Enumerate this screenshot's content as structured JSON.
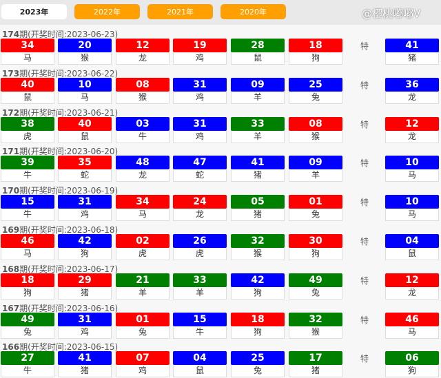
{
  "tabs": [
    "2023年",
    "2022年",
    "2021年",
    "2020年"
  ],
  "active_tab": 0,
  "colors": {
    "red": "#ff0000",
    "blue": "#0000ff",
    "green": "#008000",
    "tab": "#ff9f00"
  },
  "special_label": "特",
  "draws": [
    {
      "period": "174",
      "label": "期(开奖时间:2023-06-23)",
      "balls": [
        [
          "34",
          "马",
          "red"
        ],
        [
          "20",
          "猴",
          "blue"
        ],
        [
          "12",
          "龙",
          "red"
        ],
        [
          "19",
          "鸡",
          "red"
        ],
        [
          "28",
          "鼠",
          "green"
        ],
        [
          "18",
          "狗",
          "red"
        ]
      ],
      "special": [
        "41",
        "猪",
        "blue"
      ]
    },
    {
      "period": "173",
      "label": "期(开奖时间:2023-06-22)",
      "balls": [
        [
          "40",
          "鼠",
          "red"
        ],
        [
          "10",
          "马",
          "blue"
        ],
        [
          "08",
          "猴",
          "red"
        ],
        [
          "31",
          "鸡",
          "blue"
        ],
        [
          "09",
          "羊",
          "blue"
        ],
        [
          "25",
          "兔",
          "blue"
        ]
      ],
      "special": [
        "36",
        "龙",
        "blue"
      ]
    },
    {
      "period": "172",
      "label": "期(开奖时间:2023-06-21)",
      "balls": [
        [
          "38",
          "虎",
          "green"
        ],
        [
          "40",
          "鼠",
          "red"
        ],
        [
          "03",
          "牛",
          "blue"
        ],
        [
          "31",
          "鸡",
          "blue"
        ],
        [
          "33",
          "羊",
          "green"
        ],
        [
          "08",
          "猴",
          "red"
        ]
      ],
      "special": [
        "12",
        "龙",
        "red"
      ]
    },
    {
      "period": "171",
      "label": "期(开奖时间:2023-06-20)",
      "balls": [
        [
          "39",
          "牛",
          "green"
        ],
        [
          "35",
          "蛇",
          "red"
        ],
        [
          "48",
          "龙",
          "blue"
        ],
        [
          "47",
          "蛇",
          "blue"
        ],
        [
          "41",
          "猪",
          "blue"
        ],
        [
          "09",
          "羊",
          "blue"
        ]
      ],
      "special": [
        "10",
        "马",
        "blue"
      ]
    },
    {
      "period": "170",
      "label": "期(开奖时间:2023-06-19)",
      "balls": [
        [
          "15",
          "牛",
          "blue"
        ],
        [
          "31",
          "鸡",
          "blue"
        ],
        [
          "34",
          "马",
          "red"
        ],
        [
          "24",
          "龙",
          "red"
        ],
        [
          "05",
          "猪",
          "green"
        ],
        [
          "01",
          "兔",
          "red"
        ]
      ],
      "special": [
        "10",
        "马",
        "blue"
      ]
    },
    {
      "period": "169",
      "label": "期(开奖时间:2023-06-18)",
      "balls": [
        [
          "46",
          "马",
          "red"
        ],
        [
          "42",
          "狗",
          "blue"
        ],
        [
          "02",
          "虎",
          "red"
        ],
        [
          "26",
          "虎",
          "blue"
        ],
        [
          "32",
          "猴",
          "green"
        ],
        [
          "30",
          "狗",
          "red"
        ]
      ],
      "special": [
        "04",
        "鼠",
        "blue"
      ]
    },
    {
      "period": "168",
      "label": "期(开奖时间:2023-06-17)",
      "balls": [
        [
          "18",
          "狗",
          "red"
        ],
        [
          "29",
          "猪",
          "red"
        ],
        [
          "21",
          "羊",
          "green"
        ],
        [
          "33",
          "羊",
          "green"
        ],
        [
          "42",
          "狗",
          "blue"
        ],
        [
          "49",
          "兔",
          "green"
        ]
      ],
      "special": [
        "12",
        "龙",
        "red"
      ]
    },
    {
      "period": "167",
      "label": "期(开奖时间:2023-06-16)",
      "balls": [
        [
          "49",
          "兔",
          "green"
        ],
        [
          "31",
          "鸡",
          "blue"
        ],
        [
          "01",
          "兔",
          "red"
        ],
        [
          "15",
          "牛",
          "blue"
        ],
        [
          "18",
          "狗",
          "red"
        ],
        [
          "32",
          "猴",
          "green"
        ]
      ],
      "special": [
        "46",
        "马",
        "red"
      ]
    },
    {
      "period": "166",
      "label": "期(开奖时间:2023-06-15)",
      "balls": [
        [
          "27",
          "牛",
          "green"
        ],
        [
          "41",
          "猪",
          "blue"
        ],
        [
          "07",
          "鸡",
          "red"
        ],
        [
          "04",
          "鼠",
          "blue"
        ],
        [
          "25",
          "兔",
          "blue"
        ],
        [
          "17",
          "猪",
          "green"
        ]
      ],
      "special": [
        "06",
        "狗",
        "green"
      ]
    }
  ],
  "watermark": "@樱桃嘟嘟V"
}
